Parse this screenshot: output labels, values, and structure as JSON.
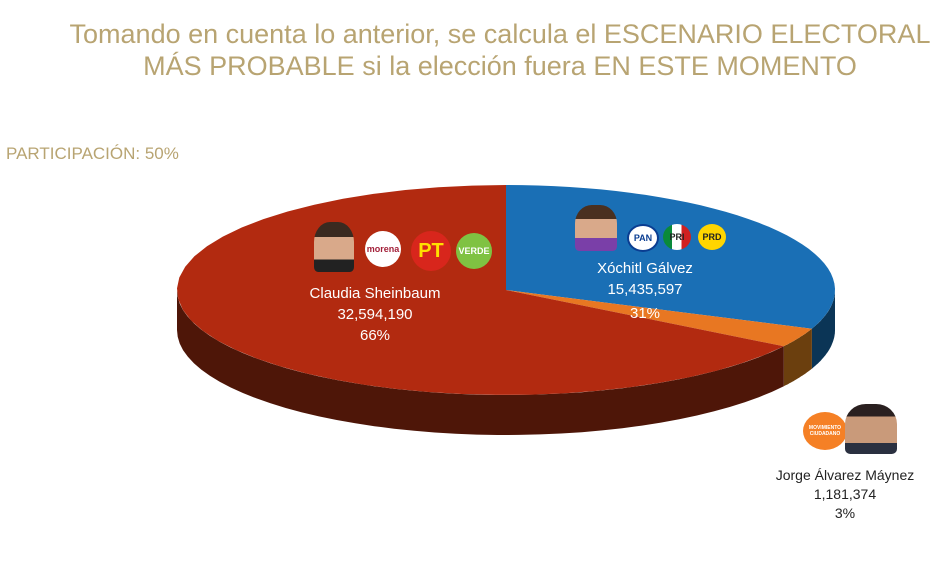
{
  "title_line1": "Tomando en cuenta lo anterior, se calcula el ESCENARIO ELECTORAL",
  "title_line2": "MÁS PROBABLE si la elección fuera EN ESTE MOMENTO",
  "participation": "PARTICIPACIÓN: 50%",
  "logos": {
    "morena": "morena",
    "pt": "PT",
    "verde": "VERDE",
    "pan": "PAN",
    "pri": "PRI",
    "prd": "PRD",
    "mc": "MOVIMIENTO CIUDADANO"
  },
  "chart_data": {
    "type": "pie",
    "title": "Escenario electoral más probable",
    "start": "top",
    "direction": "clockwise",
    "slices": [
      {
        "name": "Xóchitl Gálvez",
        "votes": "15,435,597",
        "pct_label": "31%",
        "value": 31,
        "color": "#1a6fb5",
        "side": "#0b3556"
      },
      {
        "name": "Jorge Álvarez Máynez",
        "votes": "1,181,374",
        "pct_label": "3%",
        "value": 3,
        "color": "#e87722",
        "side": "#6b3f0e"
      },
      {
        "name": "Claudia Sheinbaum",
        "votes": "32,594,190",
        "pct_label": "66%",
        "value": 66,
        "color": "#b22a10",
        "side": "#4e1608"
      }
    ]
  }
}
